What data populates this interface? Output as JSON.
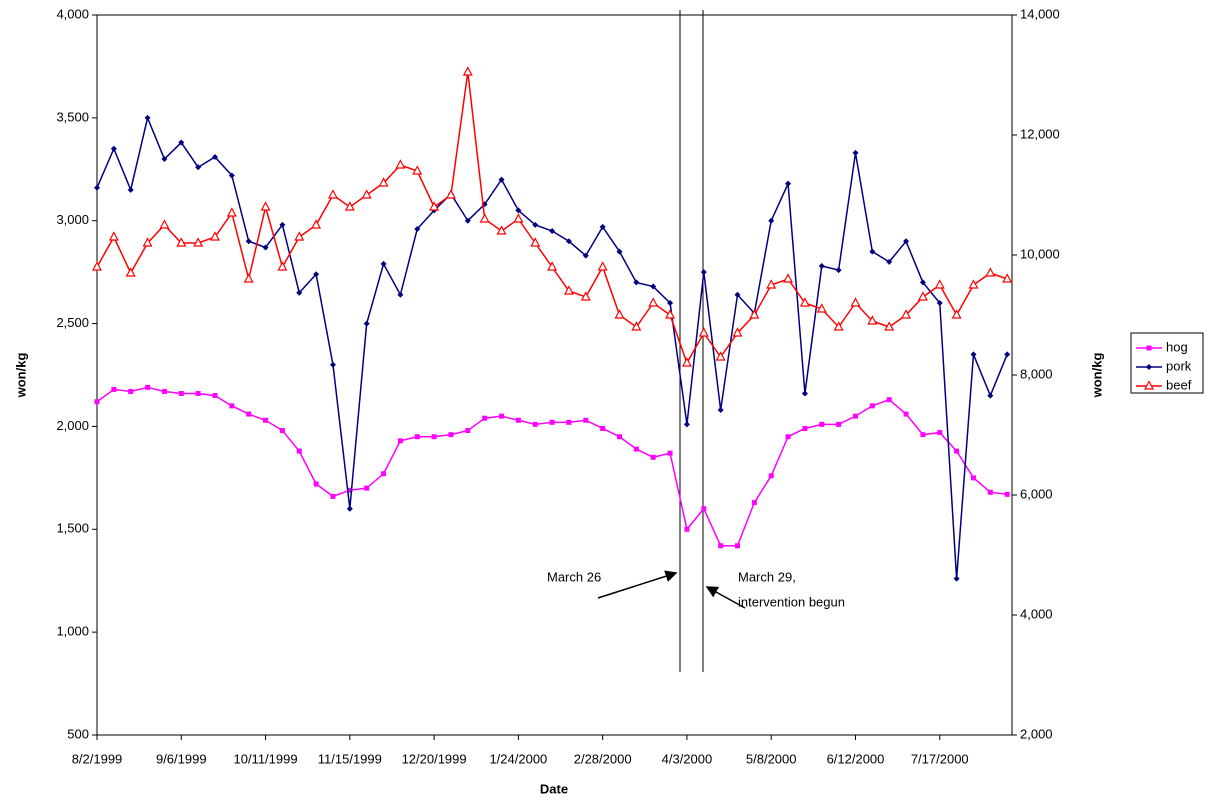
{
  "chart_data": {
    "type": "line",
    "x_label": "Date",
    "y_label": "won/kg",
    "y2_label": "won/kg",
    "x": [
      "1999-08-02",
      "1999-08-09",
      "1999-08-16",
      "1999-08-23",
      "1999-08-30",
      "1999-09-06",
      "1999-09-13",
      "1999-09-20",
      "1999-09-27",
      "1999-10-04",
      "1999-10-11",
      "1999-10-18",
      "1999-10-25",
      "1999-11-01",
      "1999-11-08",
      "1999-11-15",
      "1999-11-22",
      "1999-11-29",
      "1999-12-06",
      "1999-12-13",
      "1999-12-20",
      "1999-12-27",
      "2000-01-03",
      "2000-01-10",
      "2000-01-17",
      "2000-01-24",
      "2000-01-31",
      "2000-02-07",
      "2000-02-14",
      "2000-02-21",
      "2000-02-28",
      "2000-03-06",
      "2000-03-13",
      "2000-03-20",
      "2000-03-27",
      "2000-04-03",
      "2000-04-10",
      "2000-04-17",
      "2000-04-24",
      "2000-05-01",
      "2000-05-08",
      "2000-05-15",
      "2000-05-22",
      "2000-05-29",
      "2000-06-05",
      "2000-06-12",
      "2000-06-19",
      "2000-06-26",
      "2000-07-03",
      "2000-07-10",
      "2000-07-17",
      "2000-07-24",
      "2000-07-31",
      "2000-08-07",
      "2000-08-14"
    ],
    "xlim": [
      "1999-08-02",
      "2000-08-16"
    ],
    "xticks": [
      {
        "value": "1999-08-02",
        "label": "8/2/1999"
      },
      {
        "value": "1999-09-06",
        "label": "9/6/1999"
      },
      {
        "value": "1999-10-11",
        "label": "10/11/1999"
      },
      {
        "value": "1999-11-15",
        "label": "11/15/1999"
      },
      {
        "value": "1999-12-20",
        "label": "12/20/1999"
      },
      {
        "value": "2000-01-24",
        "label": "1/24/2000"
      },
      {
        "value": "2000-02-28",
        "label": "2/28/2000"
      },
      {
        "value": "2000-04-03",
        "label": "4/3/2000"
      },
      {
        "value": "2000-05-08",
        "label": "5/8/2000"
      },
      {
        "value": "2000-06-12",
        "label": "6/12/2000"
      },
      {
        "value": "2000-07-17",
        "label": "7/17/2000"
      }
    ],
    "ylim": [
      500,
      4000
    ],
    "yticks": [
      500,
      {
        "value": 1000,
        "label": "1,000"
      },
      {
        "value": 1500,
        "label": "1,500"
      },
      {
        "value": 2000,
        "label": "2,000"
      },
      {
        "value": 2500,
        "label": "2,500"
      },
      {
        "value": 3000,
        "label": "3,000"
      },
      {
        "value": 3500,
        "label": "3,500"
      },
      {
        "value": 4000,
        "label": "4,000"
      }
    ],
    "y2lim": [
      2000,
      14000
    ],
    "y2ticks": [
      {
        "value": 2000,
        "label": "2,000"
      },
      {
        "value": 4000,
        "label": "4,000"
      },
      {
        "value": 6000,
        "label": "6,000"
      },
      {
        "value": 8000,
        "label": "8,000"
      },
      {
        "value": 10000,
        "label": "10,000"
      },
      {
        "value": 12000,
        "label": "12,000"
      },
      {
        "value": 14000,
        "label": "14,000"
      }
    ],
    "series": [
      {
        "name": "hog",
        "color": "#ff00ff",
        "marker": "square",
        "values": [
          2120,
          2180,
          2170,
          2190,
          2170,
          2160,
          2160,
          2150,
          2100,
          2060,
          2030,
          1980,
          1880,
          1720,
          1660,
          1690,
          1700,
          1770,
          1930,
          1950,
          1950,
          1960,
          1980,
          2040,
          2050,
          2030,
          2010,
          2020,
          2020,
          2030,
          1990,
          1950,
          1890,
          1850,
          1870,
          1500,
          1600,
          1420,
          1420,
          1630,
          1760,
          1950,
          1990,
          2010,
          2010,
          2050,
          2100,
          2130,
          2060,
          1960,
          1970,
          1880,
          1750,
          1680,
          1670
        ]
      },
      {
        "name": "pork",
        "color": "#000080",
        "marker": "diamond",
        "values": [
          3160,
          3350,
          3150,
          3500,
          3300,
          3380,
          3260,
          3310,
          3220,
          2900,
          2870,
          2980,
          2650,
          2740,
          2300,
          1600,
          2500,
          2790,
          2640,
          2960,
          3050,
          3130,
          3000,
          3080,
          3200,
          3050,
          2980,
          2950,
          2900,
          2830,
          2970,
          2850,
          2700,
          2680,
          2600,
          2010,
          2750,
          2080,
          2640,
          2550,
          3000,
          3180,
          2160,
          2780,
          2760,
          3330,
          2850,
          2800,
          2900,
          2700,
          2600,
          1260,
          2350,
          2150,
          2350
        ]
      },
      {
        "name": "beef",
        "color": "#ff0000",
        "marker": "triangle",
        "axis": "y2",
        "values": [
          9800,
          10300,
          9700,
          10200,
          10500,
          10200,
          10200,
          10300,
          10700,
          9600,
          10800,
          9800,
          10300,
          10500,
          11000,
          10800,
          11000,
          11200,
          11500,
          11400,
          10800,
          11000,
          13050,
          10600,
          10400,
          10600,
          10200,
          9800,
          9400,
          9300,
          9800,
          9000,
          8800,
          9200,
          9000,
          8200,
          8700,
          8300,
          8700,
          9000,
          9500,
          9600,
          9200,
          9100,
          8800,
          9200,
          8900,
          8800,
          9000,
          9300,
          9500,
          9000,
          9500,
          9700,
          9600
        ]
      }
    ],
    "annotations": [
      {
        "lines": [
          "March 26"
        ]
      },
      {
        "lines": [
          "March 29,",
          "intervention begun"
        ]
      }
    ]
  }
}
